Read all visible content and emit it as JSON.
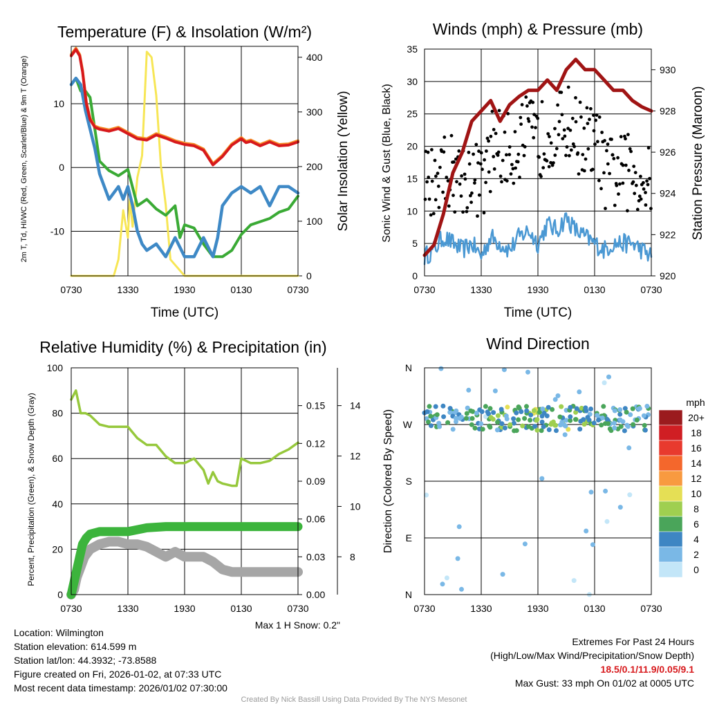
{
  "colors": {
    "temperature": "#d7191c",
    "temperature_9m": "#f48a26",
    "dewpoint": "#3e89c6",
    "wind_chill": "#3aaa35",
    "insolation": "#f7e655",
    "wind": "#4a98d3",
    "gust": "#000000",
    "pressure": "#a01414",
    "rh": "#96c83c",
    "precip": "#3cb43c",
    "snow_depth": "#a6a6a6",
    "grid": "#000000"
  },
  "time_ticks": [
    "0730",
    "1330",
    "1930",
    "0130",
    "0730"
  ],
  "chart_data": [
    {
      "type": "line",
      "title": "Temperature (F) & Insolation (W/m²)",
      "xlabel": "Time (UTC)",
      "ylabel": "2m T, Td, HI/WC (Red, Green, Scarlet/Blue) & 9m T (Orange)",
      "ylabel_right": "Solar Insolation (Yellow)",
      "xlim": [
        0,
        24
      ],
      "ylim": [
        -17,
        19
      ],
      "ylim_right": [
        0,
        420
      ],
      "yticks": [
        -10,
        0,
        10
      ],
      "yticks_right": [
        0,
        100,
        200,
        300,
        400
      ],
      "series": [
        {
          "name": "2m T",
          "axis": "left",
          "x": [
            0,
            0.5,
            0.9,
            1.2,
            1.6,
            2.0,
            2.5,
            3,
            4,
            5,
            6,
            7,
            8,
            9,
            10,
            11,
            12,
            13,
            14,
            15,
            16,
            17,
            18,
            18.5,
            19,
            20,
            21,
            22,
            23,
            24
          ],
          "values": [
            17.5,
            18.5,
            17.5,
            15,
            10,
            7.5,
            6.3,
            6,
            5.7,
            6.1,
            5.3,
            4.5,
            4.3,
            5.1,
            4.6,
            4,
            3.6,
            3.4,
            2.7,
            0.4,
            1.7,
            3.5,
            4.5,
            3.9,
            4.1,
            3.4,
            4,
            3.4,
            3.5,
            4
          ]
        },
        {
          "name": "9m T",
          "axis": "left",
          "x": [
            0,
            0.5,
            0.9,
            1.2,
            1.6,
            2.0,
            2.5,
            3,
            4,
            5,
            6,
            7,
            8,
            9,
            10,
            11,
            12,
            13,
            14,
            15,
            16,
            17,
            18,
            18.5,
            19,
            20,
            21,
            22,
            23,
            24
          ],
          "values": [
            17.7,
            18.7,
            17.7,
            15.2,
            10.2,
            7.7,
            6.5,
            6.2,
            5.9,
            6.3,
            5.5,
            4.7,
            4.5,
            5.3,
            4.8,
            4.2,
            3.8,
            3.6,
            2.9,
            0.6,
            1.9,
            3.7,
            4.7,
            4.1,
            4.3,
            3.6,
            4.2,
            3.6,
            3.7,
            4.2
          ]
        },
        {
          "name": "2m Td",
          "axis": "left",
          "x": [
            0,
            0.5,
            1,
            1.5,
            2,
            2.5,
            3,
            4,
            4.5,
            5,
            5.5,
            6,
            6.5,
            7,
            7.5,
            8,
            9,
            10,
            11,
            12,
            13,
            14,
            15,
            15.5,
            16,
            17,
            18,
            19,
            20,
            21,
            22,
            23,
            24
          ],
          "values": [
            13,
            14,
            13,
            9,
            6,
            3,
            -1,
            -5,
            -4,
            -3,
            -5,
            -3,
            -6,
            -10,
            -12,
            -13,
            -12,
            -14,
            -11,
            -14,
            -14,
            -11,
            -14,
            -11,
            -6,
            -4,
            -3,
            -4,
            -3,
            -6,
            -3,
            -3,
            -4
          ]
        },
        {
          "name": "HI/WC",
          "axis": "left",
          "x": [
            0,
            0.5,
            1,
            1.5,
            2,
            2.5,
            3,
            4,
            5,
            6,
            7,
            8,
            9,
            10,
            11,
            11.5,
            12,
            13,
            14,
            15,
            16,
            17,
            18,
            19,
            20,
            21,
            22,
            23,
            24
          ],
          "values": [
            13,
            14,
            12,
            12,
            11,
            6,
            1,
            -0.5,
            -1.3,
            -0.3,
            -6,
            -5,
            -6.5,
            -7.5,
            -6,
            -11,
            -9,
            -9.5,
            -12,
            -14,
            -14,
            -13,
            -10.5,
            -9,
            -8.5,
            -8,
            -7,
            -6.5,
            -4.5
          ]
        },
        {
          "name": "Insolation",
          "axis": "right",
          "x": [
            0,
            4.5,
            5,
            5.5,
            6,
            6.2,
            6.5,
            7,
            7.5,
            8,
            8.5,
            9,
            9.5,
            10,
            10.5,
            11,
            11.5,
            12,
            13,
            24
          ],
          "values": [
            0,
            0,
            30,
            120,
            70,
            140,
            90,
            180,
            220,
            410,
            400,
            330,
            200,
            130,
            30,
            20,
            10,
            0,
            0,
            0
          ]
        }
      ]
    },
    {
      "type": "line",
      "title": "Winds (mph) & Pressure (mb)",
      "xlabel": "Time (UTC)",
      "ylabel": "Sonic Wind & Gust (Blue, Black)",
      "ylabel_right": "Station Pressure (Maroon)",
      "xlim": [
        0,
        24
      ],
      "ylim": [
        0,
        35
      ],
      "ylim_right": [
        920,
        931
      ],
      "yticks": [
        0,
        5,
        10,
        15,
        20,
        25,
        30,
        35
      ],
      "yticks_right": [
        920,
        922,
        924,
        926,
        928,
        930
      ],
      "series": [
        {
          "name": "Sonic Wind",
          "axis": "left",
          "x": [
            0,
            1,
            2,
            3,
            4,
            5,
            6,
            7,
            8,
            9,
            10,
            11,
            12,
            13,
            14,
            15,
            16,
            17,
            18,
            19,
            20,
            21,
            22,
            23,
            24
          ],
          "values": [
            3,
            4,
            6,
            5,
            4,
            5,
            3,
            6,
            5,
            4,
            6,
            7,
            5,
            8,
            7,
            9,
            7,
            6,
            5,
            4,
            5,
            5,
            5,
            4,
            3
          ]
        },
        {
          "name": "Gust",
          "axis": "left",
          "type": "scatter",
          "x_start": 0,
          "x_end": 24,
          "count": 240
        },
        {
          "name": "Station Pressure",
          "axis": "right",
          "x": [
            0,
            1,
            2,
            3,
            4,
            5,
            6,
            7,
            8,
            9,
            10,
            11,
            12,
            13,
            14,
            15,
            16,
            17,
            18,
            19,
            20,
            21,
            22,
            23,
            24
          ],
          "values": [
            921,
            921.5,
            923,
            925,
            926,
            927.5,
            928,
            928.5,
            927.5,
            928.3,
            928.7,
            929,
            929,
            929.5,
            929,
            930,
            930.5,
            930,
            930,
            929.5,
            929,
            929,
            928.5,
            928.2,
            928
          ]
        }
      ]
    },
    {
      "type": "line",
      "title": "Relative Humidity (%) & Precipitation (in)",
      "xlabel": "",
      "ylabel": "Percent, Precipitation (Green), & Snow Depth (Gray)",
      "xlim": [
        0,
        24
      ],
      "ylim": [
        0,
        100
      ],
      "yticks": [
        0,
        20,
        40,
        60,
        80,
        100
      ],
      "precip_ticks": [
        "0.00",
        "0.03",
        "0.06",
        "0.09",
        "0.12",
        "0.15"
      ],
      "precip_lim": [
        0,
        0.18
      ],
      "snow_ticks": [
        "8",
        "10",
        "12",
        "14"
      ],
      "snow_lim": [
        6.5,
        15.5
      ],
      "series": [
        {
          "name": "RH",
          "axis": "left",
          "x": [
            0,
            0.5,
            1,
            1.5,
            2,
            3,
            4,
            5,
            6,
            7,
            8,
            9,
            10,
            11,
            12,
            13,
            14,
            14.5,
            15,
            15.5,
            16,
            17,
            17.5,
            18,
            19,
            20,
            21,
            22,
            23,
            24
          ],
          "values": [
            86,
            90,
            80,
            80,
            79,
            75,
            74,
            74,
            74,
            69,
            66,
            66,
            61,
            58,
            58,
            60,
            55,
            49,
            54,
            50,
            49,
            48,
            48,
            60,
            58,
            58,
            59,
            62,
            64,
            67
          ]
        },
        {
          "name": "Precipitation",
          "axis": "precip",
          "x": [
            0,
            0.3,
            0.6,
            0.9,
            1.2,
            1.6,
            2,
            3,
            4,
            6,
            8,
            10,
            12,
            14,
            16,
            18,
            20,
            22,
            24
          ],
          "values": [
            0,
            0.01,
            0.02,
            0.03,
            0.04,
            0.045,
            0.048,
            0.05,
            0.05,
            0.05,
            0.053,
            0.054,
            0.054,
            0.054,
            0.054,
            0.054,
            0.054,
            0.054,
            0.054
          ]
        },
        {
          "name": "Snow Depth",
          "axis": "snow",
          "x": [
            0,
            0.3,
            0.6,
            1,
            1.4,
            1.8,
            2,
            3,
            4,
            5,
            6,
            7,
            8,
            9,
            10,
            11,
            12,
            13,
            14,
            15,
            16,
            17,
            18,
            19,
            20,
            21,
            22,
            23,
            24
          ],
          "values": [
            6.5,
            6.7,
            7.2,
            7.6,
            8.0,
            8.2,
            8.3,
            8.5,
            8.6,
            8.6,
            8.5,
            8.5,
            8.4,
            8.2,
            8.0,
            8.2,
            8.0,
            8.0,
            8.0,
            7.8,
            7.5,
            7.4,
            7.4,
            7.4,
            7.4,
            7.4,
            7.4,
            7.4,
            7.4
          ]
        }
      ]
    },
    {
      "type": "scatter",
      "title": "Wind Direction",
      "xlabel": "",
      "ylabel": "Direction (Colored By Speed)",
      "xlim": [
        0,
        24
      ],
      "ylim": [
        0,
        360
      ],
      "yticks": [
        "N",
        "E",
        "S",
        "W",
        "N"
      ],
      "colorbar_label": "mph",
      "colorbar_levels": [
        "20+",
        "18",
        "16",
        "14",
        "12",
        "10",
        "8",
        "6",
        "4",
        "2",
        "0"
      ],
      "colorbar_colors": [
        "#9b1b1e",
        "#d01e23",
        "#e83a2e",
        "#f4672c",
        "#f89a40",
        "#e5df55",
        "#9fcf50",
        "#4aa55a",
        "#3e86c3",
        "#7ab8e6",
        "#c3e6f8"
      ],
      "predominant_direction_deg": 280
    }
  ],
  "footer": {
    "snow_note": "Max 1 H Snow: 0.2\"",
    "location": "Location: Wilmington",
    "elevation": "Station elevation: 614.599 m",
    "latlon": "Station lat/lon: 44.3932; -73.8588",
    "created": "Figure created on Fri, 2026-01-02, at 07:33 UTC",
    "recent": "Most recent data timestamp: 2026/01/02 07:30:00",
    "extremes_title": "Extremes For Past 24 Hours",
    "extremes_subtitle": "(High/Low/Max Wind/Precipitation/Snow Depth)",
    "extremes_values": "18.5/0.1/11.9/0.05/9.1",
    "max_gust": "Max Gust: 33 mph On 01/02 at 0005 UTC",
    "credit": "Created By Nick Bassill Using Data Provided By The NYS Mesonet"
  }
}
